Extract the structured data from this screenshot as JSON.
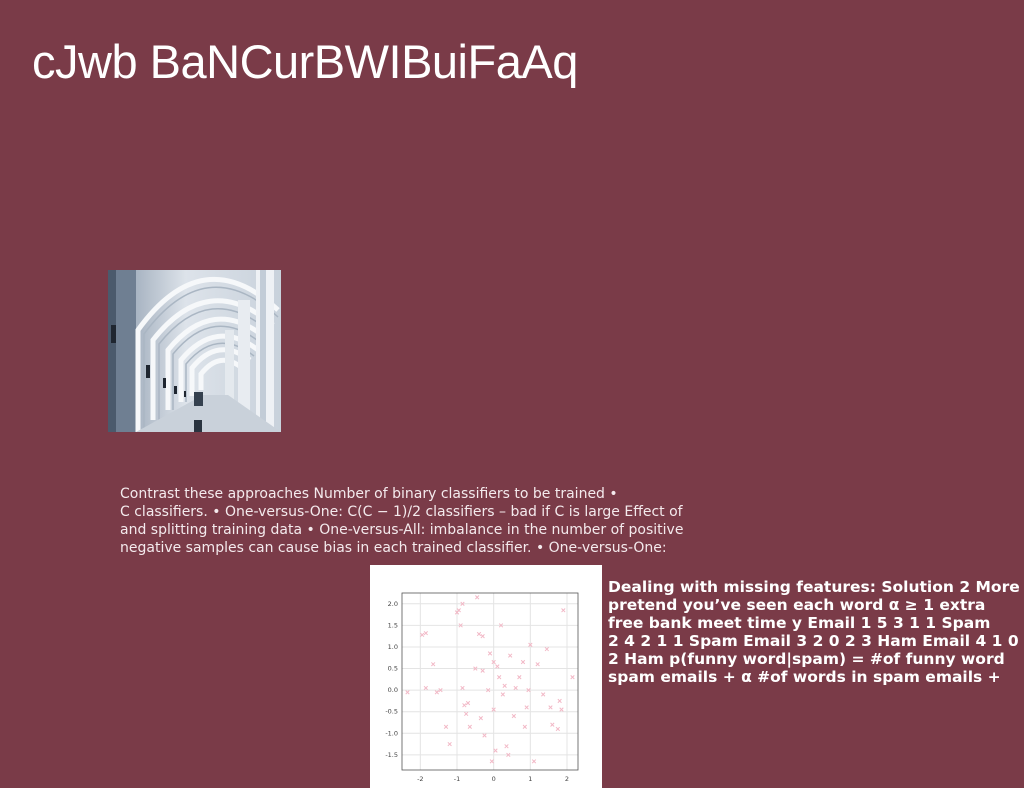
{
  "slide": {
    "title": "cJwb BaNCurBWIBuiFaAq",
    "background": "#7a3b48",
    "paragraph_lines": [
      "Contrast these approaches Number of binary classifiers to be trained •",
      "C classifiers. • One-versus-One: C(C − 1)/2 classifiers – bad if C is large Effect of",
      "and splitting training data • One-versus-All: imbalance in the number of positive",
      "negative samples can cause bias in each trained classifier. • One-versus-One:"
    ],
    "side_lines": [
      "Dealing with missing features: Solution 2 More",
      "pretend you’ve seen each word α ≥ 1 extra",
      "free bank meet time y Email 1 5 3 1 1 Spam",
      "2 4 2 1 1 Spam Email 3 2 0 2 3 Ham Email 4 1 0",
      "2 Ham p(funny word|spam) = #of funny word",
      "spam emails + α #of words in spam emails +"
    ],
    "image_subject": "white-arched-corridor"
  },
  "chart_data": {
    "type": "scatter",
    "marker": "x",
    "color": "#f2b8c6",
    "grid": true,
    "xlim": [
      -2.5,
      2.3
    ],
    "ylim": [
      -1.85,
      2.25
    ],
    "xticks": [
      "-2",
      "-1",
      "0",
      "1",
      "2"
    ],
    "yticks": [
      "2.0",
      "1.5",
      "1.0",
      "0.5",
      "0.0",
      "-0.5",
      "-1.0",
      "-1.5"
    ],
    "points": [
      [
        -2.35,
        -0.05
      ],
      [
        -1.95,
        1.28
      ],
      [
        -1.85,
        1.32
      ],
      [
        -1.85,
        0.05
      ],
      [
        -1.65,
        0.6
      ],
      [
        -1.55,
        -0.05
      ],
      [
        -1.45,
        0.0
      ],
      [
        -1.3,
        -0.85
      ],
      [
        -1.2,
        -1.25
      ],
      [
        -1.0,
        1.8
      ],
      [
        -0.95,
        1.85
      ],
      [
        -0.9,
        1.5
      ],
      [
        -0.85,
        2.0
      ],
      [
        -0.85,
        0.05
      ],
      [
        -0.8,
        -0.35
      ],
      [
        -0.75,
        -0.55
      ],
      [
        -0.7,
        -0.3
      ],
      [
        -0.65,
        -0.85
      ],
      [
        -0.5,
        0.5
      ],
      [
        -0.45,
        2.15
      ],
      [
        -0.4,
        1.3
      ],
      [
        -0.35,
        -0.65
      ],
      [
        -0.3,
        1.25
      ],
      [
        -0.3,
        0.45
      ],
      [
        -0.25,
        -1.05
      ],
      [
        -0.15,
        0.0
      ],
      [
        -0.1,
        0.85
      ],
      [
        -0.05,
        -1.65
      ],
      [
        0.0,
        0.65
      ],
      [
        0.0,
        -0.45
      ],
      [
        0.05,
        -1.4
      ],
      [
        0.1,
        0.55
      ],
      [
        0.15,
        0.3
      ],
      [
        0.2,
        1.5
      ],
      [
        0.25,
        -0.1
      ],
      [
        0.3,
        0.1
      ],
      [
        0.35,
        -1.3
      ],
      [
        0.4,
        -1.5
      ],
      [
        0.45,
        0.8
      ],
      [
        0.55,
        -0.6
      ],
      [
        0.6,
        0.05
      ],
      [
        0.7,
        0.3
      ],
      [
        0.8,
        0.65
      ],
      [
        0.85,
        -0.85
      ],
      [
        0.9,
        -0.4
      ],
      [
        0.95,
        0.0
      ],
      [
        1.0,
        1.05
      ],
      [
        1.1,
        -1.65
      ],
      [
        1.2,
        0.6
      ],
      [
        1.35,
        -0.1
      ],
      [
        1.45,
        0.95
      ],
      [
        1.55,
        -0.4
      ],
      [
        1.6,
        -0.8
      ],
      [
        1.75,
        -0.9
      ],
      [
        1.8,
        -0.25
      ],
      [
        1.85,
        -0.45
      ],
      [
        1.9,
        1.85
      ],
      [
        2.15,
        0.3
      ]
    ]
  }
}
